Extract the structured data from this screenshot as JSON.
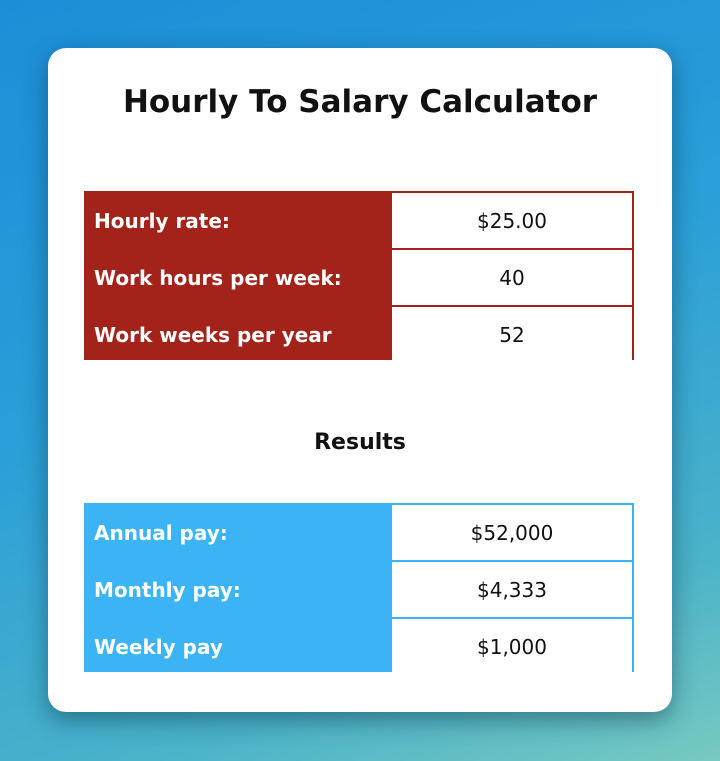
{
  "title": "Hourly To Salary Calculator",
  "inputs": [
    {
      "label": "Hourly rate:",
      "value": "$25.00"
    },
    {
      "label": "Work hours per week:",
      "value": "40"
    },
    {
      "label": "Work weeks per year",
      "value": "52"
    }
  ],
  "results_heading": "Results",
  "results": [
    {
      "label": "Annual pay:",
      "value": "$52,000"
    },
    {
      "label": "Monthly pay:",
      "value": "$4,333"
    },
    {
      "label": "Weekly pay",
      "value": "$1,000"
    }
  ],
  "colors": {
    "inputs_bg": "#a3221a",
    "results_bg": "#3bb3f5"
  }
}
